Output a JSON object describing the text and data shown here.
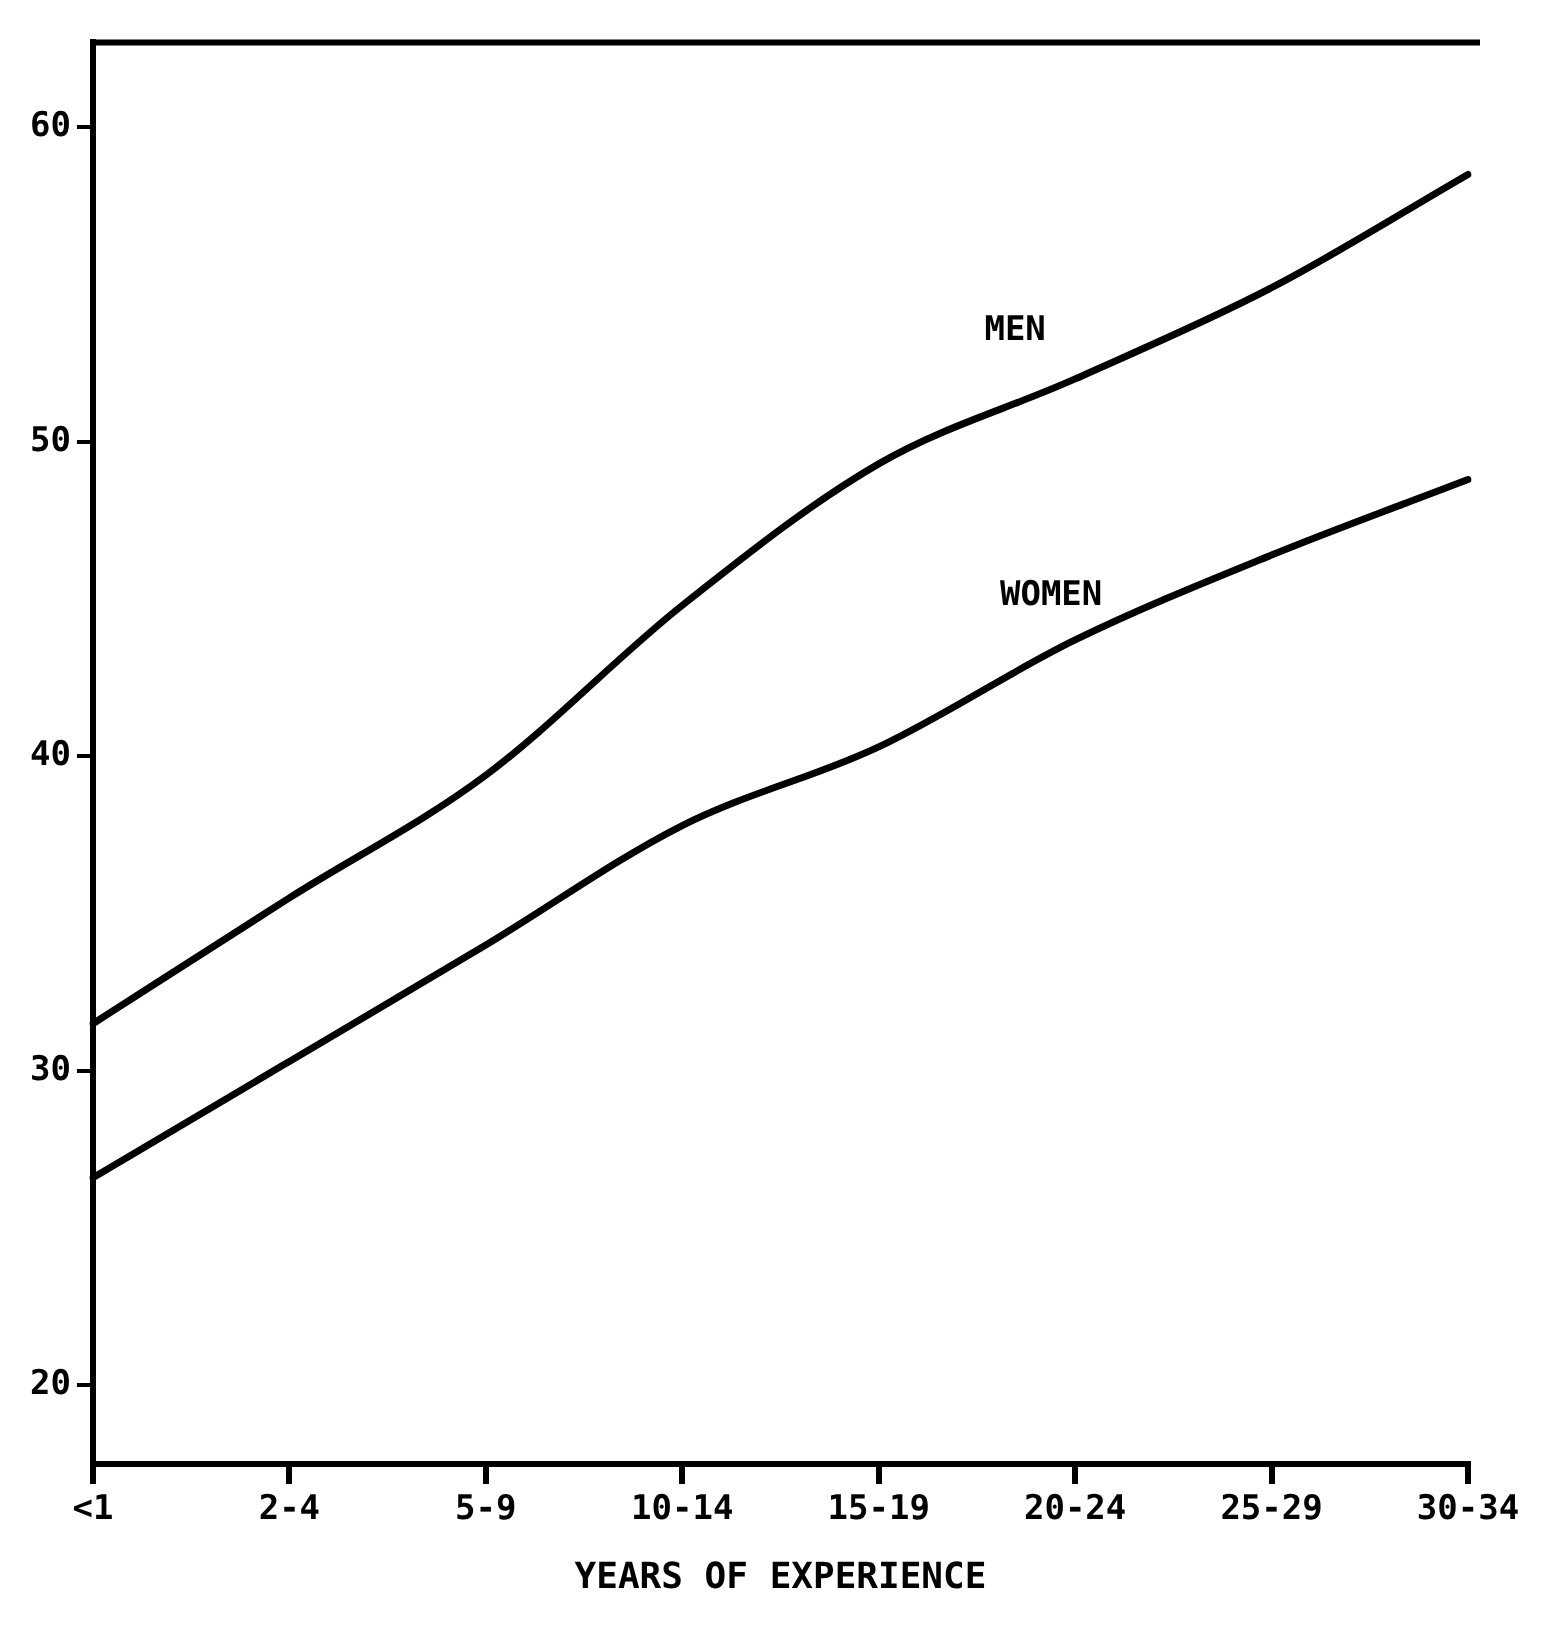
{
  "chart_data": {
    "type": "line",
    "xlabel": "YEARS OF EXPERIENCE",
    "categories": [
      "<1",
      "2-4",
      "5-9",
      "10-14",
      "15-19",
      "20-24",
      "25-29",
      "30-34"
    ],
    "series": [
      {
        "name": "MEN",
        "color": "#000000",
        "values": [
          31.5,
          35.5,
          39.4,
          44.8,
          49.3,
          52.0,
          54.9,
          58.5
        ]
      },
      {
        "name": "WOMEN",
        "color": "#000000",
        "values": [
          26.6,
          30.3,
          34.0,
          37.8,
          40.3,
          43.7,
          46.4,
          48.8
        ]
      }
    ],
    "ylim": [
      17.5,
      62.7
    ],
    "yticks": [
      20,
      30,
      40,
      50,
      60
    ],
    "grid": false,
    "legend": false,
    "marker": "none",
    "line_style": "solid"
  }
}
